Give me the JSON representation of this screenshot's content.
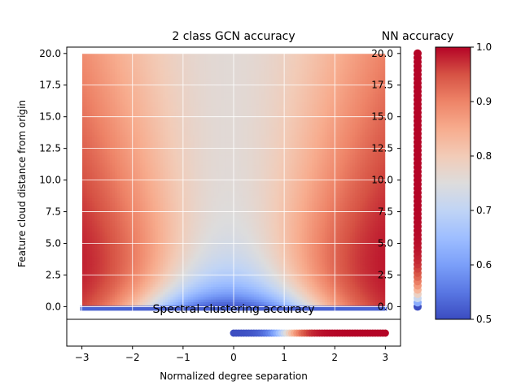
{
  "chart_data": [
    {
      "type": "heatmap",
      "title": "2 class GCN accuracy",
      "xlabel": "Normalized degree separation",
      "ylabel": "Feature cloud distance from origin",
      "xlim": [
        -3.3,
        3.3
      ],
      "ylim": [
        -1.0,
        20.5
      ],
      "x_ticks": [
        "-3",
        "-2",
        "-1",
        "0",
        "1",
        "2",
        "3"
      ],
      "y_ticks": [
        "0.0",
        "2.5",
        "5.0",
        "7.5",
        "10.0",
        "12.5",
        "15.0",
        "17.5",
        "20.0"
      ],
      "grid": true,
      "colormap": "coolwarm",
      "x_range": [
        -3,
        3
      ],
      "y_range": [
        0,
        20
      ],
      "accuracy_edge": 1.0,
      "accuracy_center": 0.76,
      "accuracy_min": 0.5
    },
    {
      "type": "scatter",
      "title": "NN accuracy",
      "y_range": [
        0,
        20
      ],
      "y_ticks": [
        "0.0",
        "2.5",
        "5.0",
        "7.5",
        "10.0",
        "12.5",
        "15.0",
        "17.5",
        "20.0"
      ],
      "colormap": "coolwarm"
    },
    {
      "type": "scatter",
      "title": "Spectral clustering accuracy",
      "x_range": [
        0,
        3
      ],
      "colormap": "coolwarm"
    },
    {
      "type": "colorbar",
      "colormap": "coolwarm",
      "range": [
        0.5,
        1.0
      ],
      "ticks": [
        "0.5",
        "0.6",
        "0.7",
        "0.8",
        "0.9",
        "1.0"
      ]
    }
  ],
  "colors": {
    "cool_end": "#3b4cc0",
    "mid": "#dddddd",
    "warm_end": "#b40426",
    "grid": "#ffffff",
    "axes": "#000000"
  }
}
